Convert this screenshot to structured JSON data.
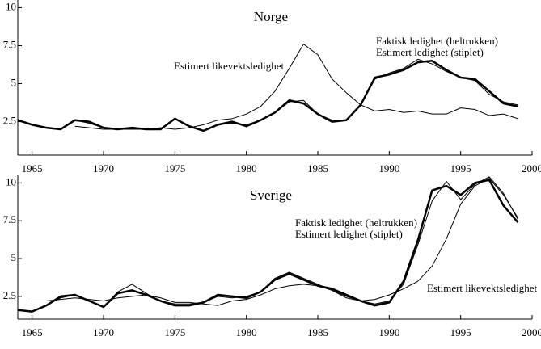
{
  "chart_data": [
    {
      "type": "line",
      "title": "Norge",
      "x": [
        1964,
        1965,
        1966,
        1967,
        1968,
        1969,
        1970,
        1971,
        1972,
        1973,
        1974,
        1975,
        1976,
        1977,
        1978,
        1979,
        1980,
        1981,
        1982,
        1983,
        1984,
        1985,
        1986,
        1987,
        1988,
        1989,
        1990,
        1991,
        1992,
        1993,
        1994,
        1995,
        1996,
        1997,
        1998,
        1999
      ],
      "series": [
        {
          "color": "#000",
          "width": 2.5,
          "values": [
            2.6,
            2.3,
            2.1,
            2.0,
            2.6,
            2.5,
            2.1,
            2.0,
            2.1,
            2.0,
            2.0,
            2.7,
            2.2,
            1.9,
            2.3,
            2.5,
            2.2,
            2.6,
            3.1,
            3.9,
            3.7,
            3.0,
            2.5,
            2.6,
            3.6,
            5.4,
            5.6,
            5.9,
            6.4,
            6.5,
            5.9,
            5.4,
            5.3,
            4.5,
            3.7,
            3.5
          ]
        },
        {
          "color": "#000",
          "width": 1,
          "values": [
            2.6,
            2.3,
            2.1,
            2.0,
            2.6,
            2.4,
            2.1,
            2.0,
            2.0,
            2.0,
            2.0,
            2.7,
            2.2,
            1.9,
            2.3,
            2.4,
            2.3,
            2.6,
            3.1,
            3.8,
            3.9,
            3.0,
            2.6,
            2.6,
            3.6,
            5.3,
            5.7,
            6.0,
            6.6,
            6.3,
            5.8,
            5.4,
            5.2,
            4.3,
            3.8,
            3.6
          ]
        },
        {
          "color": "#000",
          "width": 1,
          "values": [
            null,
            null,
            null,
            null,
            2.2,
            2.1,
            2.0,
            2.0,
            2.0,
            2.0,
            2.1,
            2.0,
            2.1,
            2.3,
            2.6,
            2.7,
            3.0,
            3.5,
            4.5,
            6.0,
            7.6,
            6.9,
            5.3,
            4.4,
            3.6,
            3.2,
            3.3,
            3.1,
            3.2,
            3.0,
            3.0,
            3.4,
            3.3,
            2.9,
            3.0,
            2.7
          ]
        }
      ],
      "annotations": [
        "Estimert likevektsledighet",
        "Faktisk ledighet (heltrukken)",
        "Estimert ledighet (stiplet)"
      ],
      "xlim": [
        1964,
        2000
      ],
      "xticks": [
        1965,
        1970,
        1975,
        1980,
        1985,
        1990,
        1995,
        2000
      ],
      "ylim": [
        0.3,
        10.5
      ],
      "yticks": [
        2.5,
        5,
        7.5,
        10
      ]
    },
    {
      "type": "line",
      "title": "Sverige",
      "x": [
        1964,
        1965,
        1966,
        1967,
        1968,
        1969,
        1970,
        1971,
        1972,
        1973,
        1974,
        1975,
        1976,
        1977,
        1978,
        1979,
        1980,
        1981,
        1982,
        1983,
        1984,
        1985,
        1986,
        1987,
        1988,
        1989,
        1990,
        1991,
        1992,
        1993,
        1994,
        1995,
        1996,
        1997,
        1998,
        1999
      ],
      "series": [
        {
          "color": "#000",
          "width": 2.5,
          "values": [
            1.6,
            1.5,
            1.9,
            2.5,
            2.6,
            2.2,
            1.8,
            2.7,
            2.9,
            2.6,
            2.2,
            1.9,
            1.9,
            2.1,
            2.6,
            2.5,
            2.4,
            2.8,
            3.6,
            4.0,
            3.6,
            3.2,
            3.0,
            2.6,
            2.2,
            1.9,
            2.1,
            3.5,
            6.2,
            9.5,
            9.8,
            9.2,
            10.0,
            10.2,
            8.5,
            7.4
          ]
        },
        {
          "color": "#000",
          "width": 1,
          "values": [
            1.6,
            1.5,
            1.9,
            2.4,
            2.6,
            2.2,
            1.8,
            2.8,
            3.3,
            2.7,
            2.2,
            2.0,
            2.0,
            2.1,
            2.5,
            2.4,
            2.5,
            2.8,
            3.7,
            4.1,
            3.7,
            3.3,
            2.9,
            2.4,
            2.2,
            2.0,
            2.2,
            3.3,
            5.9,
            8.8,
            10.1,
            8.9,
            9.9,
            10.4,
            9.3,
            7.6
          ]
        },
        {
          "color": "#000",
          "width": 1,
          "values": [
            null,
            2.2,
            2.2,
            2.3,
            2.4,
            2.3,
            2.2,
            2.4,
            2.5,
            2.6,
            2.4,
            2.1,
            2.1,
            2.0,
            1.9,
            2.2,
            2.3,
            2.6,
            3.0,
            3.2,
            3.3,
            3.2,
            2.9,
            2.5,
            2.2,
            2.3,
            2.6,
            3.0,
            3.5,
            4.5,
            6.3,
            8.6,
            9.8,
            10.3,
            9.2,
            7.7
          ]
        }
      ],
      "annotations": [
        "Faktisk ledighet (heltrukken)",
        "Estimert ledighet (stiplet)",
        "Estimert likevektsledighet"
      ],
      "xlim": [
        1964,
        2000
      ],
      "xticks": [
        1965,
        1970,
        1975,
        1980,
        1985,
        1990,
        1995,
        2000
      ],
      "ylim": [
        1,
        10.5
      ],
      "yticks": [
        2.5,
        5,
        7.5,
        10
      ]
    }
  ]
}
